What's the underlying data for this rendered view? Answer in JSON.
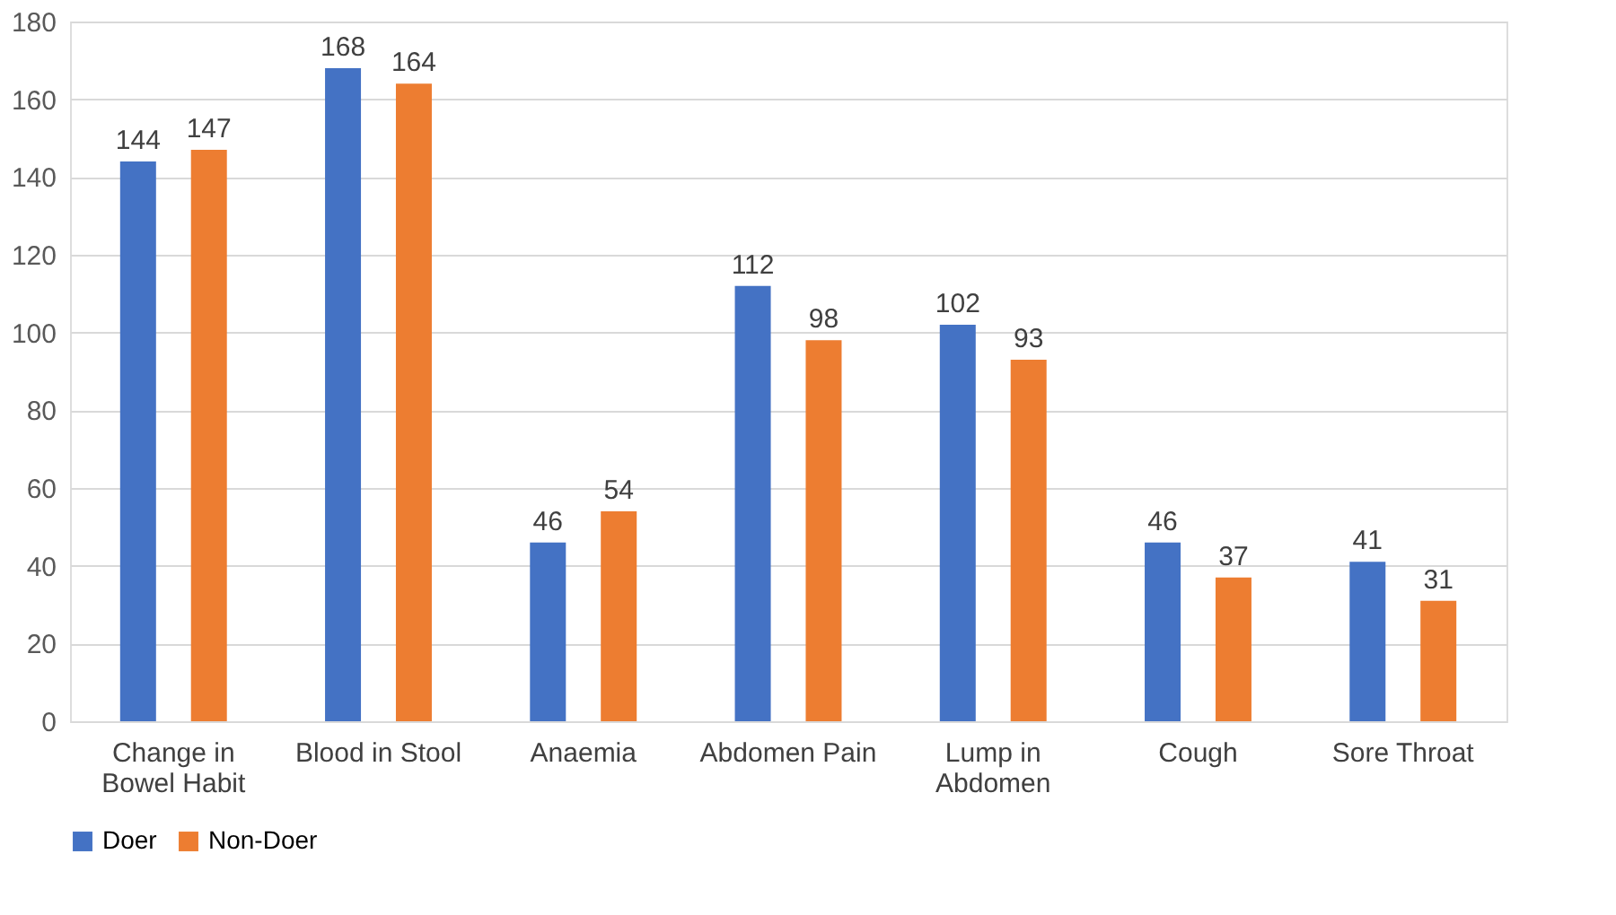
{
  "chart_data": {
    "type": "bar",
    "categories": [
      "Change in Bowel Habit",
      "Blood in Stool",
      "Anaemia",
      "Abdomen Pain",
      "Lump in Abdomen",
      "Cough",
      "Sore Throat"
    ],
    "series": [
      {
        "name": "Doer",
        "color": "#4472c4",
        "values": [
          144,
          168,
          46,
          112,
          102,
          46,
          41
        ]
      },
      {
        "name": "Non-Doer",
        "color": "#ed7d31",
        "values": [
          147,
          164,
          54,
          98,
          93,
          37,
          31
        ]
      }
    ],
    "ylim": [
      0,
      180
    ],
    "yticks": [
      0,
      20,
      40,
      60,
      80,
      100,
      120,
      140,
      160,
      180
    ],
    "grid": "y",
    "legend": "bottom",
    "data_labels": true
  }
}
